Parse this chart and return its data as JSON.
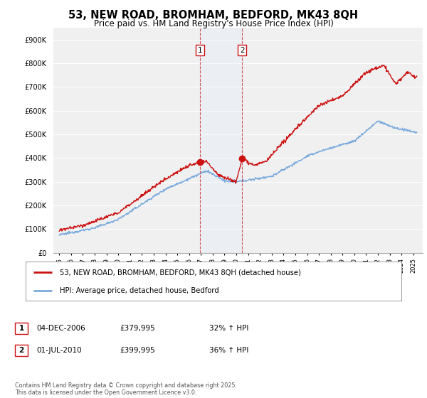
{
  "title": "53, NEW ROAD, BROMHAM, BEDFORD, MK43 8QH",
  "subtitle": "Price paid vs. HM Land Registry's House Price Index (HPI)",
  "title_fontsize": 10.5,
  "subtitle_fontsize": 8.5,
  "background_color": "#ffffff",
  "plot_bg_color": "#f0f0f0",
  "grid_color": "#ffffff",
  "hpi_color": "#7aaadd",
  "price_color": "#cc1111",
  "annotation_bg": "#ffffff",
  "annotation_border": "#cc1111",
  "vline_color": "#cc1111",
  "span_color": "#ddeeff",
  "ylim": [
    0,
    950000
  ],
  "yticks": [
    0,
    100000,
    200000,
    300000,
    400000,
    500000,
    600000,
    700000,
    800000,
    900000
  ],
  "ytick_labels": [
    "£0",
    "£100K",
    "£200K",
    "£300K",
    "£400K",
    "£500K",
    "£600K",
    "£700K",
    "£800K",
    "£900K"
  ],
  "sale1_year": 2006.92,
  "sale1_price": 379995,
  "sale1_label": "1",
  "sale1_date": "04-DEC-2006",
  "sale1_pct": "32% ↑ HPI",
  "sale2_year": 2010.5,
  "sale2_price": 399995,
  "sale2_label": "2",
  "sale2_date": "01-JUL-2010",
  "sale2_pct": "36% ↑ HPI",
  "legend_line1": "53, NEW ROAD, BROMHAM, BEDFORD, MK43 8QH (detached house)",
  "legend_line2": "HPI: Average price, detached house, Bedford",
  "footer": "Contains HM Land Registry data © Crown copyright and database right 2025.\nThis data is licensed under the Open Government Licence v3.0.",
  "xmin": 1994.5,
  "xmax": 2025.8
}
